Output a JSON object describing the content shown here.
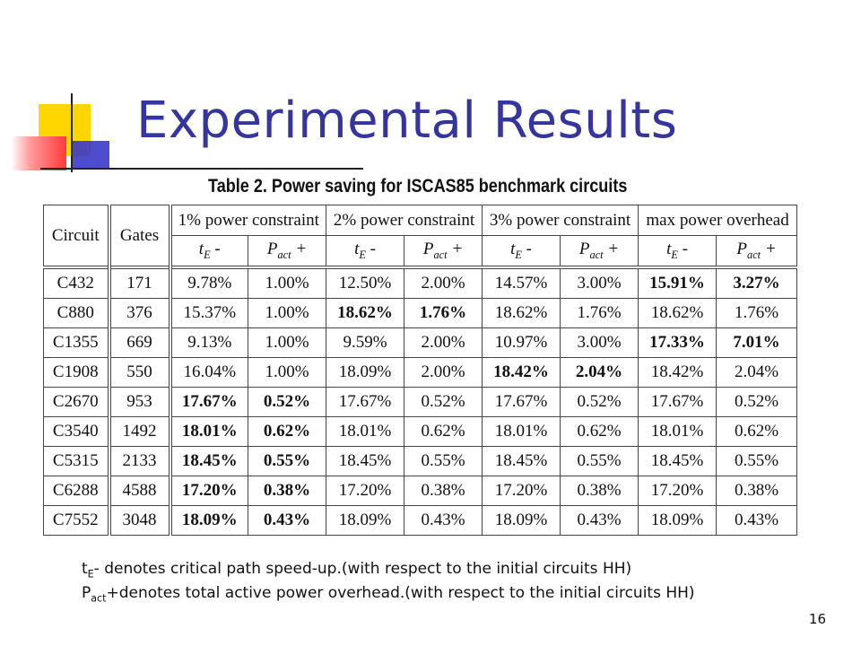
{
  "slide": {
    "title": "Experimental Results",
    "page_number": "16"
  },
  "table": {
    "caption": "Table 2. Power saving for ISCAS85 benchmark circuits",
    "header": {
      "circuit": "Circuit",
      "gates": "Gates",
      "groups": [
        "1% power constraint",
        "2% power constraint",
        "3% power constraint",
        "max power overhead"
      ],
      "sub_te": "tE -",
      "sub_te_base": "t",
      "sub_te_sub": "E",
      "sub_te_suffix": " -",
      "sub_pact_base": "P",
      "sub_pact_sub": "act",
      "sub_pact_suffix": " +"
    },
    "rows": [
      {
        "circuit": "C432",
        "gates": "171",
        "cells": [
          "9.78%",
          "1.00%",
          "12.50%",
          "2.00%",
          "14.57%",
          "3.00%",
          "15.91%",
          "3.27%"
        ],
        "bold": [
          6,
          7
        ]
      },
      {
        "circuit": "C880",
        "gates": "376",
        "cells": [
          "15.37%",
          "1.00%",
          "18.62%",
          "1.76%",
          "18.62%",
          "1.76%",
          "18.62%",
          "1.76%"
        ],
        "bold": [
          2,
          3
        ]
      },
      {
        "circuit": "C1355",
        "gates": "669",
        "cells": [
          "9.13%",
          "1.00%",
          "9.59%",
          "2.00%",
          "10.97%",
          "3.00%",
          "17.33%",
          "7.01%"
        ],
        "bold": [
          6,
          7
        ]
      },
      {
        "circuit": "C1908",
        "gates": "550",
        "cells": [
          "16.04%",
          "1.00%",
          "18.09%",
          "2.00%",
          "18.42%",
          "2.04%",
          "18.42%",
          "2.04%"
        ],
        "bold": [
          4,
          5
        ]
      },
      {
        "circuit": "C2670",
        "gates": "953",
        "cells": [
          "17.67%",
          "0.52%",
          "17.67%",
          "0.52%",
          "17.67%",
          "0.52%",
          "17.67%",
          "0.52%"
        ],
        "bold": [
          0,
          1
        ]
      },
      {
        "circuit": "C3540",
        "gates": "1492",
        "cells": [
          "18.01%",
          "0.62%",
          "18.01%",
          "0.62%",
          "18.01%",
          "0.62%",
          "18.01%",
          "0.62%"
        ],
        "bold": [
          0,
          1
        ]
      },
      {
        "circuit": "C5315",
        "gates": "2133",
        "cells": [
          "18.45%",
          "0.55%",
          "18.45%",
          "0.55%",
          "18.45%",
          "0.55%",
          "18.45%",
          "0.55%"
        ],
        "bold": [
          0,
          1
        ]
      },
      {
        "circuit": "C6288",
        "gates": "4588",
        "cells": [
          "17.20%",
          "0.38%",
          "17.20%",
          "0.38%",
          "17.20%",
          "0.38%",
          "17.20%",
          "0.38%"
        ],
        "bold": [
          0,
          1
        ]
      },
      {
        "circuit": "C7552",
        "gates": "3048",
        "cells": [
          "18.09%",
          "0.43%",
          "18.09%",
          "0.43%",
          "18.09%",
          "0.43%",
          "18.09%",
          "0.43%"
        ],
        "bold": [
          0,
          1
        ]
      }
    ]
  },
  "notes": {
    "note1_base": "t",
    "note1_sub": "E",
    "note1_text": "- denotes critical path speed-up.(with respect to the initial circuits HH)",
    "note2_base": "P",
    "note2_sub": "act",
    "note2_text": "+denotes total active power overhead.(with respect to the initial circuits HH)"
  }
}
